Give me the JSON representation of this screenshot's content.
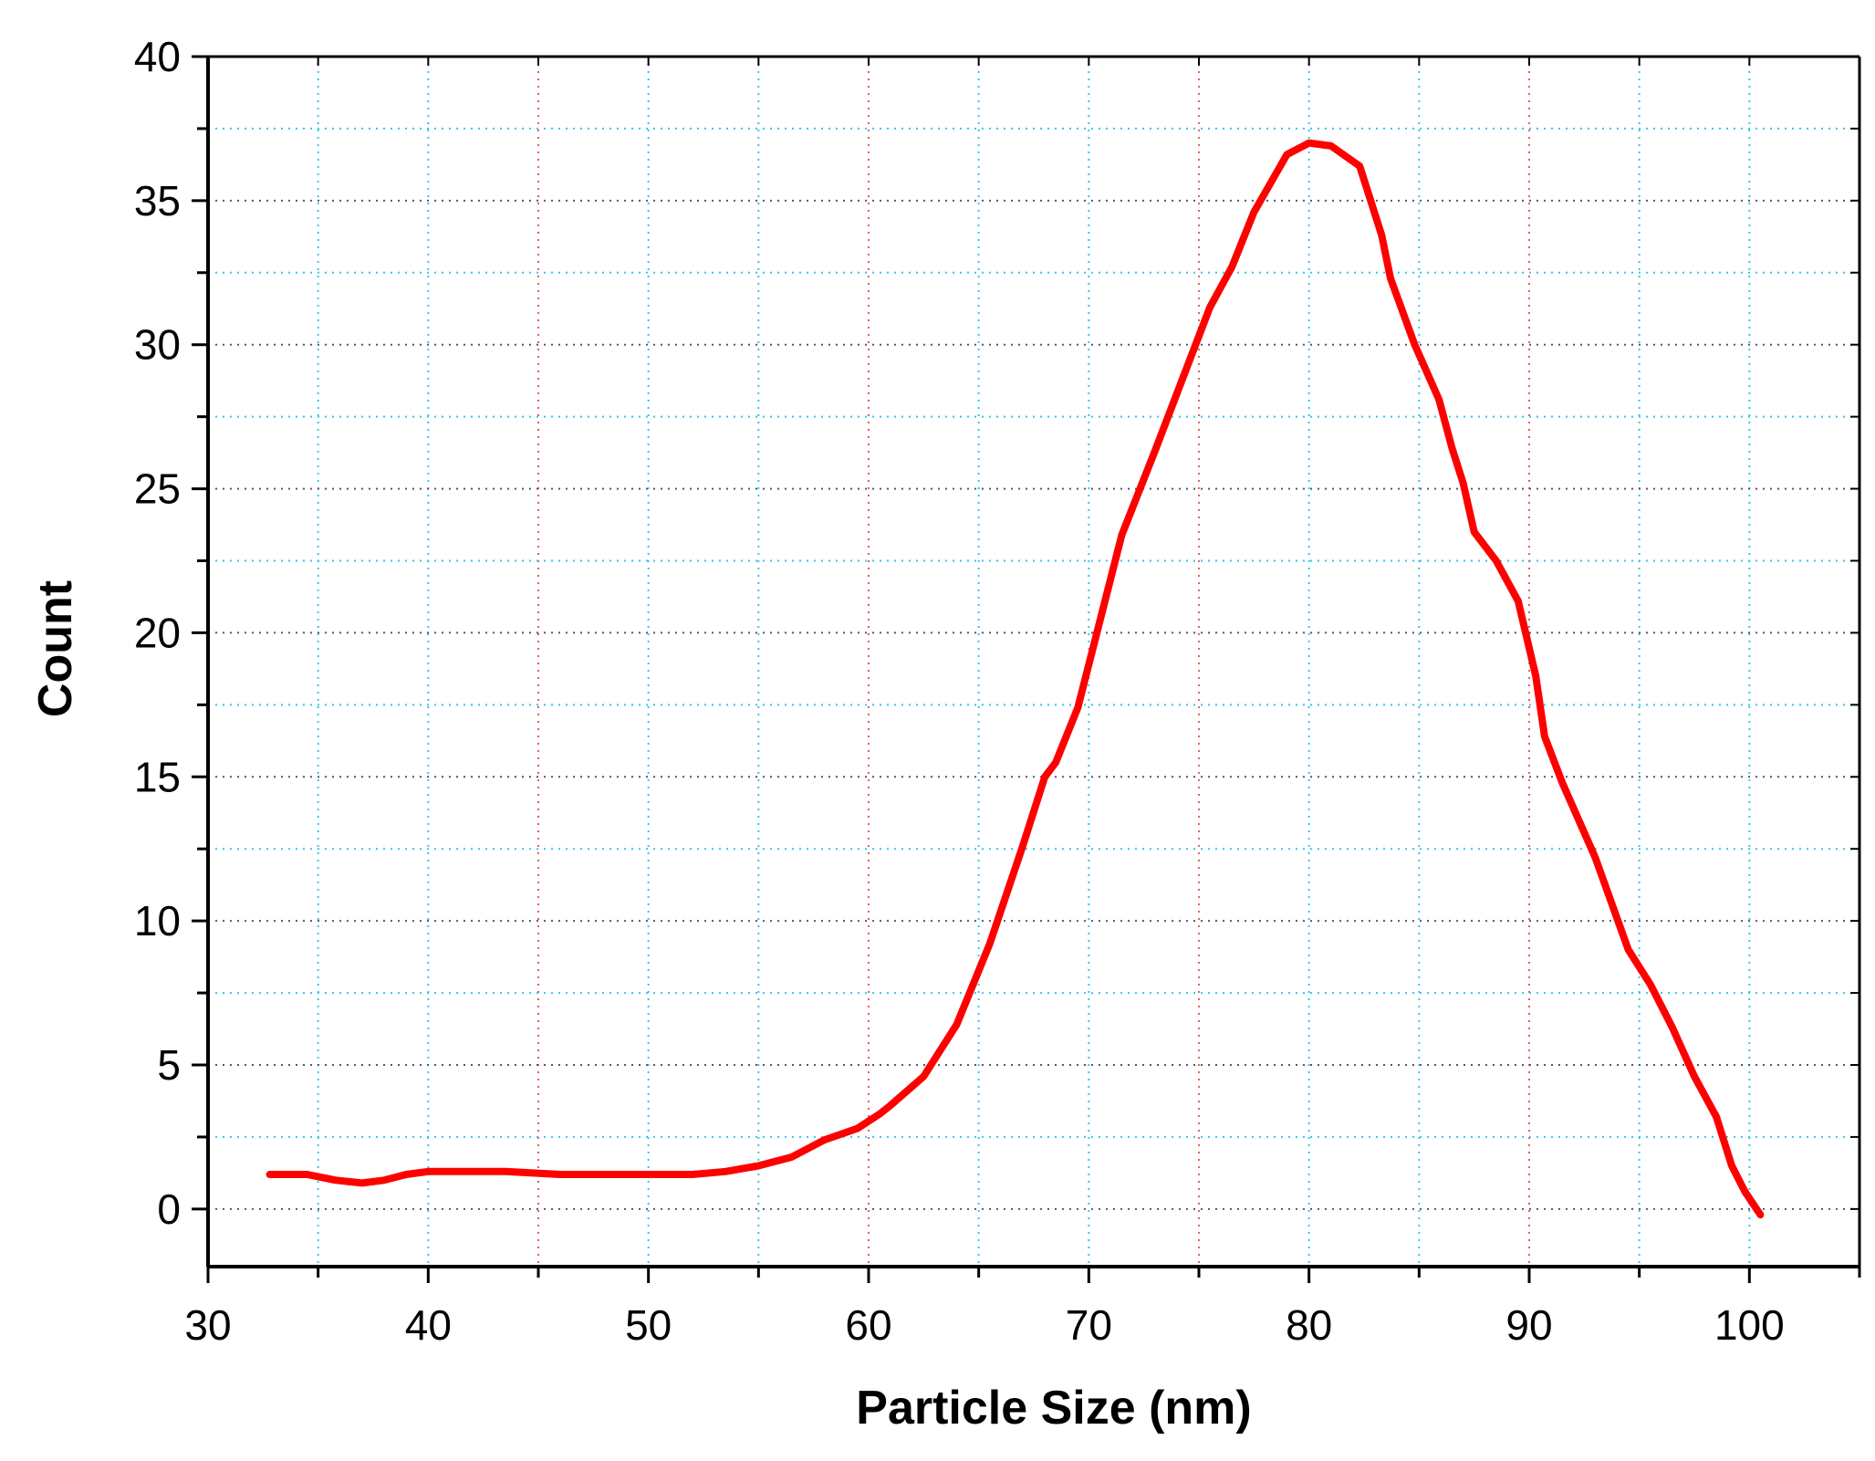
{
  "chart_data": {
    "type": "line",
    "title": "",
    "xlabel": "Particle Size (nm)",
    "ylabel": "Count",
    "xlim": [
      30,
      105
    ],
    "ylim": [
      -2,
      40
    ],
    "x_ticks": [
      30,
      40,
      50,
      60,
      70,
      80,
      90,
      100
    ],
    "y_ticks": [
      0,
      5,
      10,
      15,
      20,
      25,
      30,
      35,
      40
    ],
    "x_tick_labels": [
      "30",
      "40",
      "50",
      "60",
      "70",
      "80",
      "90",
      "100"
    ],
    "y_tick_labels": [
      "0",
      "5",
      "10",
      "15",
      "20",
      "25",
      "30",
      "35",
      "40"
    ],
    "grid": true,
    "legend": "none",
    "series": [
      {
        "color": "#ff0000",
        "x": [
          32.8,
          34.5,
          35.8,
          37.0,
          38.0,
          39.0,
          40.0,
          41.5,
          43.5,
          46.0,
          48.0,
          50.0,
          52.0,
          53.5,
          55.0,
          56.5,
          58.0,
          59.5,
          60.5,
          61.0,
          62.5,
          64.0,
          65.5,
          67.0,
          68.0,
          68.5,
          69.5,
          70.5,
          71.5,
          73.0,
          74.5,
          75.5,
          76.0,
          76.5,
          77.5,
          79.0,
          80.0,
          81.0,
          82.3,
          83.3,
          83.7,
          84.8,
          85.9,
          86.5,
          87.0,
          87.5,
          88.5,
          89.5,
          90.3,
          90.7,
          91.5,
          93.0,
          94.5,
          95.5,
          96.5,
          97.5,
          98.5,
          99.2,
          99.8,
          100.5
        ],
        "y": [
          1.2,
          1.2,
          1.0,
          0.9,
          1.0,
          1.2,
          1.3,
          1.3,
          1.3,
          1.2,
          1.2,
          1.2,
          1.2,
          1.3,
          1.5,
          1.8,
          2.4,
          2.8,
          3.3,
          3.6,
          4.6,
          6.4,
          9.2,
          12.6,
          15.0,
          15.5,
          17.4,
          20.4,
          23.4,
          26.3,
          29.3,
          31.3,
          32.0,
          32.7,
          34.6,
          36.6,
          37.0,
          36.9,
          36.2,
          33.8,
          32.3,
          30.0,
          28.1,
          26.4,
          25.2,
          23.5,
          22.5,
          21.1,
          18.5,
          16.4,
          14.8,
          12.2,
          9.0,
          7.8,
          6.3,
          4.6,
          3.2,
          1.5,
          0.6,
          -0.2
        ]
      }
    ]
  }
}
